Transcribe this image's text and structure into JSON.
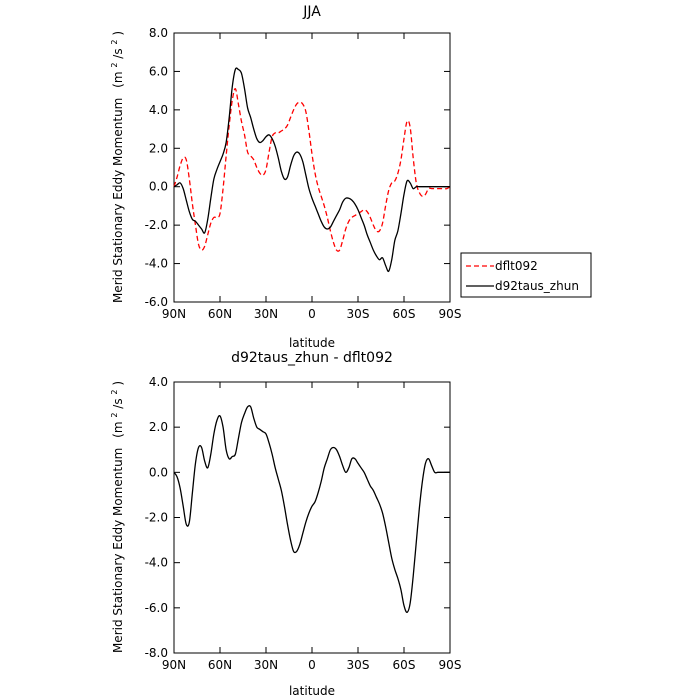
{
  "chart_data": [
    {
      "type": "line",
      "title": "JJA",
      "xlabel": "latitude",
      "ylabel": "Merid Stationary Eddy Momentum",
      "ylabel_unit_base": "(m",
      "ylabel_unit_exp1": "2",
      "ylabel_unit_mid": "/s",
      "ylabel_unit_exp2": "2",
      "ylabel_unit_end": ")",
      "xlim": [
        90,
        -90
      ],
      "ylim": [
        -6.0,
        8.0
      ],
      "x_ticks": [
        90,
        60,
        30,
        0,
        -30,
        -60,
        -90
      ],
      "x_tick_labels": [
        "90N",
        "60N",
        "30N",
        "0",
        "30S",
        "60S",
        "90S"
      ],
      "y_ticks": [
        -6.0,
        -4.0,
        -2.0,
        0.0,
        2.0,
        4.0,
        6.0,
        8.0
      ],
      "y_tick_labels": [
        "-6.0",
        "-4.0",
        "-2.0",
        "0.0",
        "2.0",
        "4.0",
        "6.0",
        "8.0"
      ],
      "grid": false,
      "legend_position": "outside-right",
      "series": [
        {
          "name": "dflt092",
          "color": "#ff0000",
          "dash": "dashed",
          "x": [
            90,
            88,
            86,
            84,
            82,
            80,
            78,
            76,
            74,
            72,
            70,
            68,
            66,
            64,
            62,
            60,
            58,
            56,
            54,
            52,
            50,
            48,
            46,
            44,
            42,
            40,
            38,
            36,
            34,
            32,
            30,
            28,
            26,
            24,
            22,
            20,
            18,
            16,
            14,
            12,
            10,
            8,
            6,
            4,
            2,
            0,
            -2,
            -4,
            -6,
            -8,
            -10,
            -12,
            -14,
            -16,
            -18,
            -20,
            -22,
            -24,
            -26,
            -28,
            -30,
            -32,
            -34,
            -36,
            -38,
            -40,
            -42,
            -44,
            -46,
            -48,
            -50,
            -52,
            -54,
            -56,
            -58,
            -60,
            -62,
            -64,
            -66,
            -68,
            -70,
            -72,
            -74,
            -76,
            -78,
            -80,
            -82,
            -84,
            -86,
            -88,
            -90
          ],
          "y": [
            0.0,
            0.5,
            1.1,
            1.5,
            1.4,
            0.4,
            -0.9,
            -2.0,
            -3.0,
            -3.3,
            -3.1,
            -2.5,
            -1.9,
            -1.6,
            -1.6,
            -1.4,
            -0.1,
            1.6,
            3.2,
            4.5,
            5.1,
            4.3,
            3.4,
            2.7,
            1.8,
            1.6,
            1.4,
            1.0,
            0.7,
            0.6,
            0.9,
            1.8,
            2.6,
            2.8,
            2.8,
            2.9,
            3.0,
            3.2,
            3.6,
            4.0,
            4.3,
            4.4,
            4.3,
            3.9,
            2.9,
            1.7,
            0.7,
            0.0,
            -0.5,
            -1.0,
            -1.6,
            -2.3,
            -2.9,
            -3.3,
            -3.3,
            -2.8,
            -2.2,
            -1.8,
            -1.6,
            -1.5,
            -1.4,
            -1.3,
            -1.2,
            -1.3,
            -1.6,
            -2.0,
            -2.3,
            -2.3,
            -1.9,
            -1.0,
            -0.2,
            0.2,
            0.3,
            0.7,
            1.4,
            2.5,
            3.4,
            3.1,
            1.5,
            0.2,
            -0.3,
            -0.5,
            -0.4,
            -0.1,
            -0.1,
            -0.1,
            -0.1,
            -0.1,
            -0.1,
            -0.1,
            0.0
          ]
        },
        {
          "name": "d92taus_zhun",
          "color": "#000000",
          "dash": "solid",
          "x": [
            90,
            88,
            86,
            84,
            82,
            80,
            78,
            76,
            74,
            72,
            70,
            68,
            66,
            64,
            62,
            60,
            58,
            56,
            54,
            52,
            50,
            48,
            46,
            44,
            42,
            40,
            38,
            36,
            34,
            32,
            30,
            28,
            26,
            24,
            22,
            20,
            18,
            16,
            14,
            12,
            10,
            8,
            6,
            4,
            2,
            0,
            -2,
            -4,
            -6,
            -8,
            -10,
            -12,
            -14,
            -16,
            -18,
            -20,
            -22,
            -24,
            -26,
            -28,
            -30,
            -32,
            -34,
            -36,
            -38,
            -40,
            -42,
            -44,
            -46,
            -48,
            -50,
            -52,
            -54,
            -56,
            -58,
            -60,
            -62,
            -64,
            -66,
            -68,
            -70,
            -72,
            -74,
            -76,
            -78,
            -80,
            -82,
            -84,
            -86,
            -88,
            -90
          ],
          "y": [
            0.0,
            0.1,
            0.2,
            -0.1,
            -0.7,
            -1.3,
            -1.7,
            -1.8,
            -2.0,
            -2.2,
            -2.4,
            -1.7,
            -0.6,
            0.4,
            0.9,
            1.3,
            1.7,
            2.3,
            3.6,
            5.2,
            6.1,
            6.1,
            5.9,
            5.1,
            4.1,
            3.6,
            3.0,
            2.5,
            2.3,
            2.4,
            2.6,
            2.7,
            2.5,
            2.1,
            1.5,
            0.8,
            0.4,
            0.5,
            1.1,
            1.6,
            1.8,
            1.7,
            1.3,
            0.6,
            -0.1,
            -0.6,
            -1.0,
            -1.4,
            -1.8,
            -2.1,
            -2.2,
            -2.1,
            -1.8,
            -1.5,
            -1.2,
            -0.8,
            -0.6,
            -0.6,
            -0.7,
            -0.9,
            -1.2,
            -1.6,
            -2.0,
            -2.5,
            -2.9,
            -3.3,
            -3.6,
            -3.8,
            -3.7,
            -4.1,
            -4.4,
            -3.8,
            -2.8,
            -2.3,
            -1.4,
            -0.4,
            0.3,
            0.2,
            -0.1,
            0.0,
            0.0,
            0.0,
            0.0,
            0.0,
            0.0,
            0.0,
            0.0,
            0.0,
            0.0,
            0.0,
            0.0
          ]
        }
      ]
    },
    {
      "type": "line",
      "title": "d92taus_zhun - dflt092",
      "xlabel": "latitude",
      "ylabel": "Merid Stationary Eddy Momentum",
      "ylabel_unit_base": "(m",
      "ylabel_unit_exp1": "2",
      "ylabel_unit_mid": "/s",
      "ylabel_unit_exp2": "2",
      "ylabel_unit_end": ")",
      "xlim": [
        90,
        -90
      ],
      "ylim": [
        -8.0,
        4.0
      ],
      "x_ticks": [
        90,
        60,
        30,
        0,
        -30,
        -60,
        -90
      ],
      "x_tick_labels": [
        "90N",
        "60N",
        "30N",
        "0",
        "30S",
        "60S",
        "90S"
      ],
      "y_ticks": [
        -8.0,
        -6.0,
        -4.0,
        -2.0,
        0.0,
        2.0,
        4.0
      ],
      "y_tick_labels": [
        "-8.0",
        "-6.0",
        "-4.0",
        "-2.0",
        "0.0",
        "2.0",
        "4.0"
      ],
      "grid": false,
      "series": [
        {
          "color": "#000000",
          "dash": "solid",
          "x": [
            90,
            88,
            86,
            84,
            82,
            80,
            78,
            76,
            74,
            72,
            70,
            68,
            66,
            64,
            62,
            60,
            58,
            56,
            54,
            52,
            50,
            48,
            46,
            44,
            42,
            40,
            38,
            36,
            34,
            32,
            30,
            28,
            26,
            24,
            22,
            20,
            18,
            16,
            14,
            12,
            10,
            8,
            6,
            4,
            2,
            0,
            -2,
            -4,
            -6,
            -8,
            -10,
            -12,
            -14,
            -16,
            -18,
            -20,
            -22,
            -24,
            -26,
            -28,
            -30,
            -32,
            -34,
            -36,
            -38,
            -40,
            -42,
            -44,
            -46,
            -48,
            -50,
            -52,
            -54,
            -56,
            -58,
            -60,
            -62,
            -64,
            -66,
            -68,
            -70,
            -72,
            -74,
            -76,
            -78,
            -80,
            -82,
            -84,
            -86,
            -88,
            -90
          ],
          "y": [
            0.0,
            -0.2,
            -0.7,
            -1.5,
            -2.3,
            -2.2,
            -0.9,
            0.4,
            1.1,
            1.1,
            0.5,
            0.2,
            0.8,
            1.7,
            2.3,
            2.5,
            2.0,
            1.0,
            0.6,
            0.7,
            0.8,
            1.5,
            2.2,
            2.6,
            2.9,
            2.9,
            2.4,
            2.0,
            1.9,
            1.8,
            1.7,
            1.3,
            0.8,
            0.2,
            -0.3,
            -0.8,
            -1.5,
            -2.3,
            -3.0,
            -3.5,
            -3.5,
            -3.2,
            -2.7,
            -2.2,
            -1.8,
            -1.5,
            -1.3,
            -0.9,
            -0.4,
            0.2,
            0.6,
            1.0,
            1.1,
            1.0,
            0.7,
            0.3,
            0.0,
            0.2,
            0.6,
            0.6,
            0.4,
            0.2,
            0.0,
            -0.3,
            -0.6,
            -0.8,
            -1.1,
            -1.4,
            -1.8,
            -2.4,
            -3.1,
            -3.8,
            -4.3,
            -4.7,
            -5.2,
            -5.9,
            -6.2,
            -5.8,
            -4.6,
            -3.1,
            -1.6,
            -0.4,
            0.4,
            0.6,
            0.3,
            0.0,
            0.0,
            0.0,
            0.0,
            0.0,
            0.0
          ]
        }
      ]
    }
  ]
}
